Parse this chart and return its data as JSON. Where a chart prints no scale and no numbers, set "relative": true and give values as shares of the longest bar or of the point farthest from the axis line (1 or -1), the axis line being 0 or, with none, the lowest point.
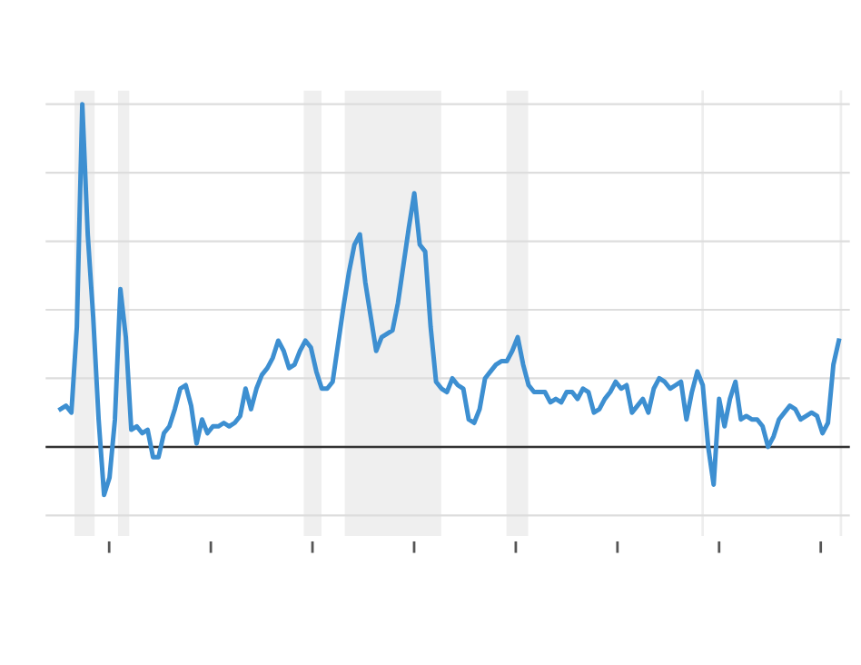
{
  "chart_data": {
    "type": "line",
    "relative": true,
    "grid": "y",
    "color": "#3d8fd1",
    "categories": [
      null,
      null,
      null,
      null,
      null,
      null,
      null,
      null,
      null,
      null,
      null,
      null,
      null,
      null,
      null,
      null,
      null,
      null,
      null,
      null,
      null,
      null,
      null,
      null,
      null,
      null,
      null,
      null,
      null,
      null,
      null,
      null,
      null,
      null,
      null,
      null,
      null,
      null,
      null,
      null,
      null,
      null,
      null,
      null,
      null,
      null,
      null,
      null,
      null,
      null,
      null,
      null,
      null,
      null,
      null,
      null,
      null,
      null,
      null,
      null,
      null,
      null,
      null,
      null,
      null,
      null,
      null,
      null,
      null,
      null,
      null,
      null,
      null,
      null,
      null,
      null,
      null,
      null,
      null,
      null,
      null,
      null,
      null,
      null,
      null,
      null,
      null,
      null,
      null,
      null,
      null,
      null,
      null,
      null,
      null,
      null,
      null,
      null,
      null,
      null,
      null,
      null,
      null,
      null,
      null,
      null,
      null,
      null,
      null,
      null,
      null,
      null,
      null,
      null,
      null,
      null,
      null,
      null,
      null,
      null,
      null,
      null,
      null,
      null,
      null,
      null,
      null,
      null,
      null,
      null,
      null,
      null,
      null,
      null,
      null,
      null,
      null,
      null,
      null,
      null,
      null,
      null,
      null,
      null
    ],
    "values": [
      0.11,
      0.12,
      0.1,
      0.35,
      1.0,
      0.62,
      0.38,
      0.08,
      -0.14,
      -0.09,
      0.08,
      0.46,
      0.32,
      0.05,
      0.06,
      0.04,
      0.05,
      -0.03,
      -0.03,
      0.04,
      0.06,
      0.11,
      0.17,
      0.18,
      0.12,
      0.01,
      0.08,
      0.04,
      0.06,
      0.06,
      0.07,
      0.06,
      0.07,
      0.09,
      0.17,
      0.11,
      0.17,
      0.21,
      0.23,
      0.26,
      0.31,
      0.28,
      0.23,
      0.24,
      0.28,
      0.31,
      0.29,
      0.22,
      0.17,
      0.17,
      0.19,
      0.3,
      0.41,
      0.51,
      0.59,
      0.62,
      0.48,
      0.38,
      0.28,
      0.32,
      0.33,
      0.34,
      0.42,
      0.53,
      0.64,
      0.74,
      0.59,
      0.57,
      0.35,
      0.19,
      0.17,
      0.16,
      0.2,
      0.18,
      0.17,
      0.08,
      0.07,
      0.11,
      0.2,
      0.22,
      0.24,
      0.25,
      0.25,
      0.28,
      0.32,
      0.24,
      0.18,
      0.16,
      0.16,
      0.16,
      0.13,
      0.14,
      0.13,
      0.16,
      0.16,
      0.14,
      0.17,
      0.16,
      0.1,
      0.11,
      0.14,
      0.16,
      0.19,
      0.17,
      0.18,
      0.1,
      0.12,
      0.14,
      0.1,
      0.17,
      0.2,
      0.19,
      0.17,
      0.18,
      0.19,
      0.08,
      0.16,
      0.22,
      0.18,
      0.0,
      -0.11,
      0.14,
      0.06,
      0.14,
      0.19,
      0.08,
      0.09,
      0.08,
      0.08,
      0.06,
      0.0,
      0.03,
      0.08,
      0.1,
      0.12,
      0.11,
      0.08,
      0.09,
      0.1,
      0.09,
      0.04,
      0.07,
      0.24,
      0.31
    ]
  }
}
